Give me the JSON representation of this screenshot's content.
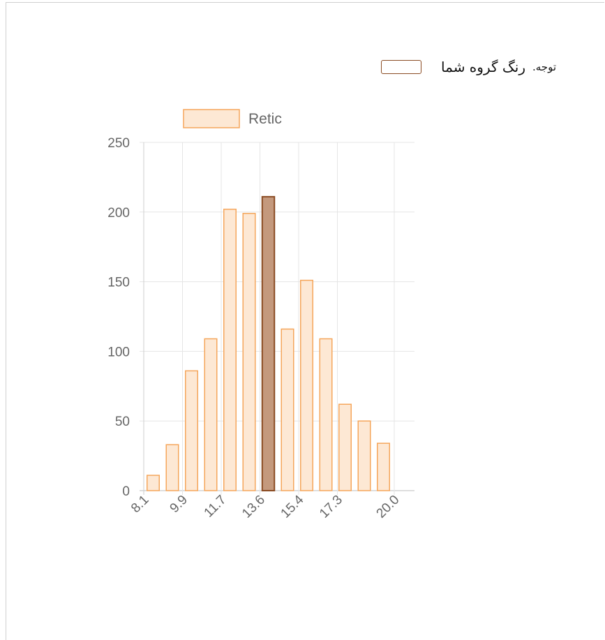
{
  "note": {
    "label_small": "توجه.",
    "label_big": "رنگ گروه شما"
  },
  "colors": {
    "bar_fill": "#fde8d4",
    "bar_border": "#f5a65b",
    "highlight_fill": "#c4997d",
    "highlight_border": "#8a4b22",
    "grid": "#e5e5e5",
    "axis_text": "#666666"
  },
  "chart_data": {
    "type": "bar",
    "legend": {
      "label": "Retic",
      "position": "top"
    },
    "x_tick_labels": [
      "8.1",
      "9.9",
      "11.7",
      "13.6",
      "15.4",
      "17.3",
      "20.0"
    ],
    "values": [
      11,
      33,
      86,
      109,
      202,
      199,
      211,
      116,
      151,
      109,
      62,
      50,
      34
    ],
    "highlight_index": 6,
    "ylim": [
      0,
      250
    ],
    "y_ticks": [
      0,
      50,
      100,
      150,
      200,
      250
    ],
    "grid": true
  }
}
